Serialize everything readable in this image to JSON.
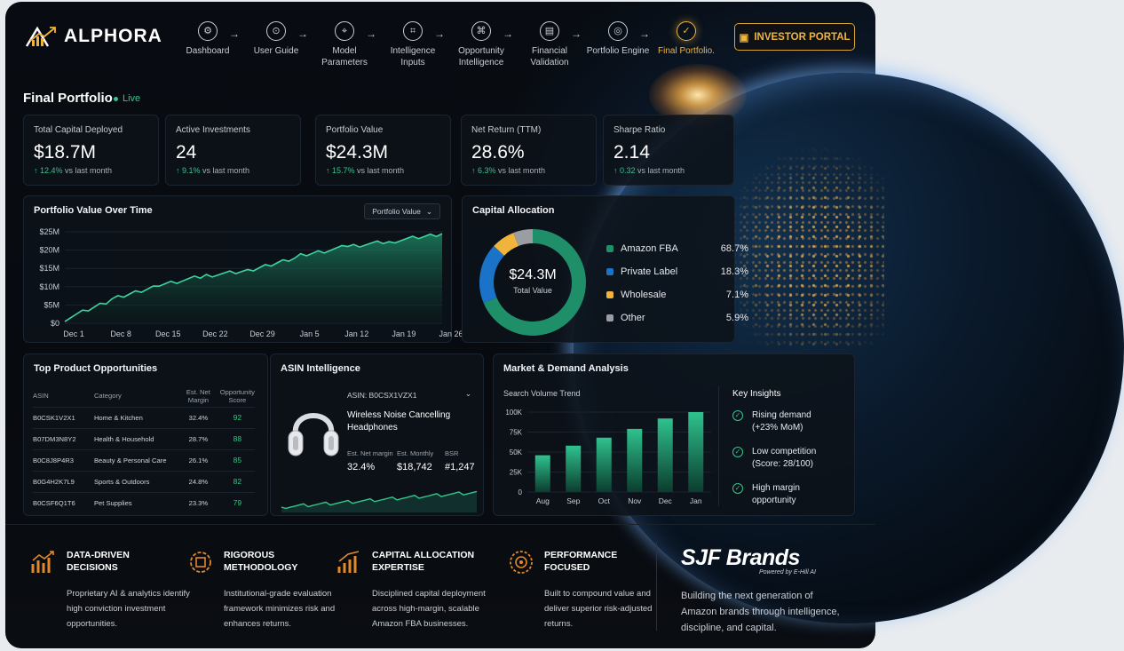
{
  "brand": {
    "name": "ALPHORA"
  },
  "nav": [
    {
      "label": "Dashboard",
      "icon": "dashboard-icon"
    },
    {
      "label": "User Guide",
      "icon": "guide-icon"
    },
    {
      "label": "Model Parameters",
      "icon": "parameters-icon"
    },
    {
      "label": "Intelligence Inputs",
      "icon": "inputs-icon"
    },
    {
      "label": "Opportunity Intelligence",
      "icon": "opportunity-icon"
    },
    {
      "label": "Financial Validation",
      "icon": "validation-icon"
    },
    {
      "label": "Portfolio Engine",
      "icon": "engine-icon"
    },
    {
      "label": "Final Portfolio.",
      "icon": "check-circle-icon",
      "active": true
    }
  ],
  "investor_button": "INVESTOR PORTAL",
  "page": {
    "title": "Final Portfolio",
    "live": "Live"
  },
  "kpis": [
    {
      "label": "Total Capital Deployed",
      "value": "$18.7M",
      "change": "↑ 12.4%",
      "suffix": "vs last month"
    },
    {
      "label": "Active Investments",
      "value": "24",
      "change": "↑ 9.1%",
      "suffix": "vs last month"
    },
    {
      "label": "Portfolio Value",
      "value": "$24.3M",
      "change": "↑ 15.7%",
      "suffix": "vs last month"
    },
    {
      "label": "Net Return (TTM)",
      "value": "28.6%",
      "change": "↑ 6.3%",
      "suffix": "vs last month"
    },
    {
      "label": "Sharpe Ratio",
      "value": "2.14",
      "change": "↑ 0.32",
      "suffix": "vs last month"
    }
  ],
  "pv_chart": {
    "title": "Portfolio Value Over Time",
    "dropdown": "Portfolio Value"
  },
  "alloc": {
    "title": "Capital Allocation",
    "center_value": "$24.3M",
    "center_label": "Total Value"
  },
  "products": {
    "title": "Top Product Opportunities",
    "headers": [
      "ASIN",
      "Category",
      "Est. Net Margin",
      "Opportunity Score"
    ],
    "rows": [
      [
        "B0CSK1V2X1",
        "Home & Kitchen",
        "32.4%",
        "92"
      ],
      [
        "B07DM3N8Y2",
        "Health & Household",
        "28.7%",
        "88"
      ],
      [
        "B0C8J8P4R3",
        "Beauty & Personal Care",
        "26.1%",
        "85"
      ],
      [
        "B0G4H2K7L9",
        "Sports & Outdoors",
        "24.8%",
        "82"
      ],
      [
        "B0CSF6Q1T6",
        "Pet Supplies",
        "23.3%",
        "79"
      ]
    ]
  },
  "asin": {
    "title": "ASIN Intelligence",
    "asin": "ASIN: B0CSX1VZX1",
    "product": "Wireless Noise Cancelling Headphones",
    "metrics": [
      {
        "label": "Est. Net margin",
        "value": "32.4%"
      },
      {
        "label": "Est. Monthly",
        "value": "$18,742"
      },
      {
        "label": "BSR",
        "value": "#1,247"
      }
    ]
  },
  "market": {
    "title": "Market & Demand Analysis",
    "subtitle": "Search Volume Trend",
    "insights_title": "Key Insights",
    "insights": [
      "Rising demand (+23% MoM)",
      "Low competition (Score: 28/100)",
      "High margin opportunity"
    ]
  },
  "features": [
    {
      "title": "DATA-DRIVEN DECISIONS",
      "desc": "Proprietary AI & analytics identify high conviction investment opportunities.",
      "icon": "chart-growth-icon"
    },
    {
      "title": "RIGOROUS METHODOLOGY",
      "desc": "Institutional-grade evaluation framework minimizes risk and enhances returns.",
      "icon": "gear-chip-icon"
    },
    {
      "title": "CAPITAL ALLOCATION EXPERTISE",
      "desc": "Disciplined capital deployment across high-margin, scalable Amazon FBA businesses.",
      "icon": "bars-growth-icon"
    },
    {
      "title": "PERFORMANCE FOCUSED",
      "desc": "Built to compound value and deliver superior risk-adjusted returns.",
      "icon": "target-gear-icon"
    }
  ],
  "sjf": {
    "logo": "SJF Brands",
    "sub": "Powered by E-Hill AI",
    "tagline": "Building the next generation of Amazon brands through intelligence, discipline, and capital."
  },
  "colors": {
    "accent": "#f0b43c",
    "green": "#35c58a",
    "blue": "#1a73c9",
    "yellow": "#f0b43c",
    "grey": "#9a9da2",
    "teal": "#1f8f6a"
  },
  "chart_data": [
    {
      "type": "area",
      "title": "Portfolio Value Over Time",
      "x": [
        "Dec 1",
        "Dec 8",
        "Dec 15",
        "Dec 22",
        "Dec 29",
        "Jan 5",
        "Jan 12",
        "Jan 19",
        "Jan 26"
      ],
      "values": [
        1.0,
        6.5,
        10.5,
        13.0,
        14.5,
        18.5,
        21.0,
        22.5,
        24.5
      ],
      "ytick_labels": [
        "$0",
        "$5M",
        "$10M",
        "$15M",
        "$20M",
        "$25M"
      ],
      "ylim": [
        0,
        25
      ],
      "unit": "$M"
    },
    {
      "type": "pie",
      "title": "Capital Allocation",
      "categories": [
        "Amazon FBA",
        "Private Label",
        "Wholesale",
        "Other"
      ],
      "values": [
        68.7,
        18.3,
        7.1,
        5.9
      ],
      "labels": [
        "68.7%",
        "18.3%",
        "7.1%",
        "5.9%"
      ],
      "colors": [
        "#1f8f6a",
        "#1a73c9",
        "#f0b43c",
        "#9a9da2"
      ]
    },
    {
      "type": "bar",
      "title": "Search Volume Trend",
      "categories": [
        "Aug",
        "Sep",
        "Oct",
        "Nov",
        "Dec",
        "Jan"
      ],
      "values": [
        46,
        58,
        68,
        79,
        92,
        100
      ],
      "ytick_labels": [
        "0",
        "25K",
        "50K",
        "75K",
        "100K"
      ],
      "ylim": [
        0,
        100
      ],
      "unit": "K"
    }
  ]
}
